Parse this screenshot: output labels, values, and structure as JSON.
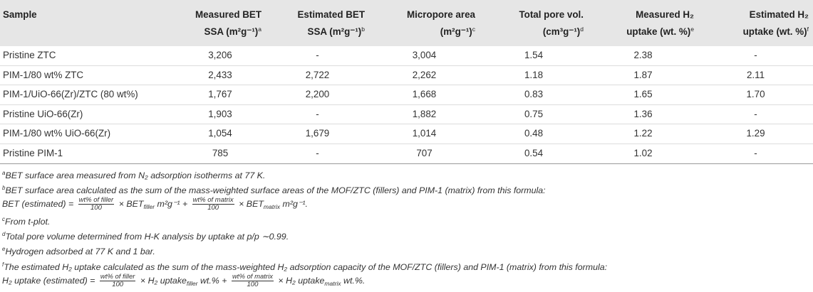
{
  "table": {
    "headers": [
      {
        "line1": "Sample",
        "line2": "",
        "sup": ""
      },
      {
        "line1": "Measured BET",
        "line2": "SSA (m²g⁻¹)",
        "sup": "a"
      },
      {
        "line1": "Estimated BET",
        "line2": "SSA (m²g⁻¹)",
        "sup": "b"
      },
      {
        "line1": "Micropore area",
        "line2": "(m²g⁻¹)",
        "sup": "c"
      },
      {
        "line1": "Total pore vol.",
        "line2": "(cm³g⁻¹)",
        "sup": "d"
      },
      {
        "line1": "Measured H₂",
        "line2": "uptake (wt. %)",
        "sup": "e"
      },
      {
        "line1": "Estimated H₂",
        "line2": "uptake (wt. %)",
        "sup": "f"
      }
    ],
    "rows": [
      [
        "Pristine ZTC",
        "3,206",
        "-",
        "3,004",
        "1.54",
        "2.38",
        "-"
      ],
      [
        "PIM-1/80 wt% ZTC",
        "2,433",
        "2,722",
        "2,262",
        "1.18",
        "1.87",
        "2.11"
      ],
      [
        "PIM-1/UiO-66(Zr)/ZTC (80 wt%)",
        "1,767",
        "2,200",
        "1,668",
        "0.83",
        "1.65",
        "1.70"
      ],
      [
        "Pristine UiO-66(Zr)",
        "1,903",
        "-",
        "1,882",
        "0.75",
        "1.36",
        "-"
      ],
      [
        "PIM-1/80 wt% UiO-66(Zr)",
        "1,054",
        "1,679",
        "1,014",
        "0.48",
        "1.22",
        "1.29"
      ],
      [
        "Pristine PIM-1",
        "785",
        "-",
        "707",
        "0.54",
        "1.02",
        "-"
      ]
    ]
  },
  "footnotes": {
    "a": {
      "mark": "a",
      "text": "BET surface area measured from N₂ adsorption isotherms at 77 K."
    },
    "b": {
      "mark": "b",
      "text": "BET surface area calculated as the sum of the mass-weighted surface areas of the MOF/ZTC (fillers) and PIM-1 (matrix) from this formula:"
    },
    "b_formula": {
      "lhs": "BET  (estimated) =",
      "frac1_num": "wt% of filler",
      "frac1_den": "100",
      "term1": "× BET",
      "term1_sub": "filler",
      "term1_unit": "m²g⁻¹ +",
      "frac2_num": "wt% of matrix",
      "frac2_den": "100",
      "term2": "× BET",
      "term2_sub": "matrix",
      "term2_unit": "m²g⁻¹."
    },
    "c": {
      "mark": "c",
      "text": "From t-plot."
    },
    "d": {
      "mark": "d",
      "text": "Total pore volume determined from H-K analysis by uptake at p/p ∼0.99."
    },
    "e": {
      "mark": "e",
      "text": "Hydrogen adsorbed at 77 K and 1 bar."
    },
    "f": {
      "mark": "f",
      "text": "The estimated H₂ uptake calculated as the sum of the mass-weighted H₂ adsorption capacity of the MOF/ZTC (fillers) and PIM-1 (matrix) from this formula:"
    },
    "f_formula": {
      "lhs": "H₂ uptake  (estimated) =",
      "frac1_num": "wt% of filler",
      "frac1_den": "100",
      "term1": "× H₂ uptake",
      "term1_sub": "filler",
      "term1_unit": "wt.% +",
      "frac2_num": "wt% of matrix",
      "frac2_den": "100",
      "term2": "× H₂ uptake",
      "term2_sub": "matrix",
      "term2_unit": "wt.%."
    }
  }
}
